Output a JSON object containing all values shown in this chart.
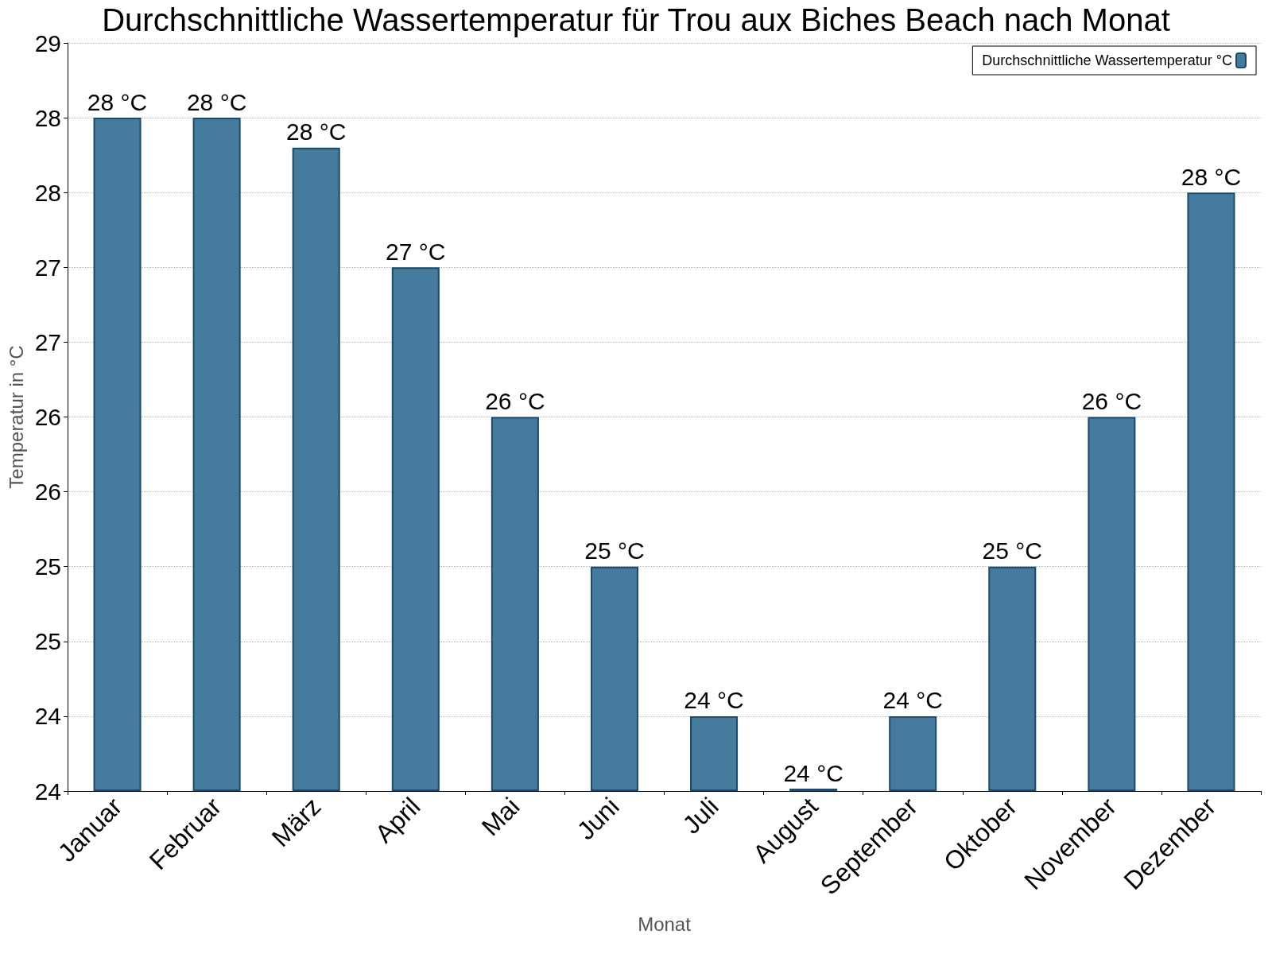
{
  "chart_data": {
    "type": "bar",
    "title": "Durchschnittliche Wassertemperatur für Trou aux Biches Beach nach Monat",
    "xlabel": "Monat",
    "ylabel": "Temperatur in °C",
    "categories": [
      "Januar",
      "Februar",
      "März",
      "April",
      "Mai",
      "Juni",
      "Juli",
      "August",
      "September",
      "Oktober",
      "November",
      "Dezember"
    ],
    "series": [
      {
        "name": "Durchschnittliche Wassertemperatur °C",
        "color": "#457b9d",
        "values": [
          28.5,
          28.5,
          28.3,
          27.5,
          26.5,
          25.5,
          24.5,
          24.0,
          24.5,
          25.5,
          26.5,
          28.0
        ],
        "value_labels": [
          "28 °C",
          "28 °C",
          "28 °C",
          "27 °C",
          "26 °C",
          "25 °C",
          "24 °C",
          "24 °C",
          "24 °C",
          "25 °C",
          "26 °C",
          "28 °C"
        ]
      }
    ],
    "ylim": [
      24,
      29
    ],
    "yticks": [
      24,
      {
        "value": 24.5,
        "label": "24"
      },
      25,
      {
        "value": 25.5,
        "label": "25"
      },
      26,
      {
        "value": 26.5,
        "label": "26"
      },
      27,
      {
        "value": 27.5,
        "label": "27"
      },
      28,
      {
        "value": 28.5,
        "label": "28"
      },
      29
    ],
    "grid": "y",
    "legend": "top right"
  }
}
